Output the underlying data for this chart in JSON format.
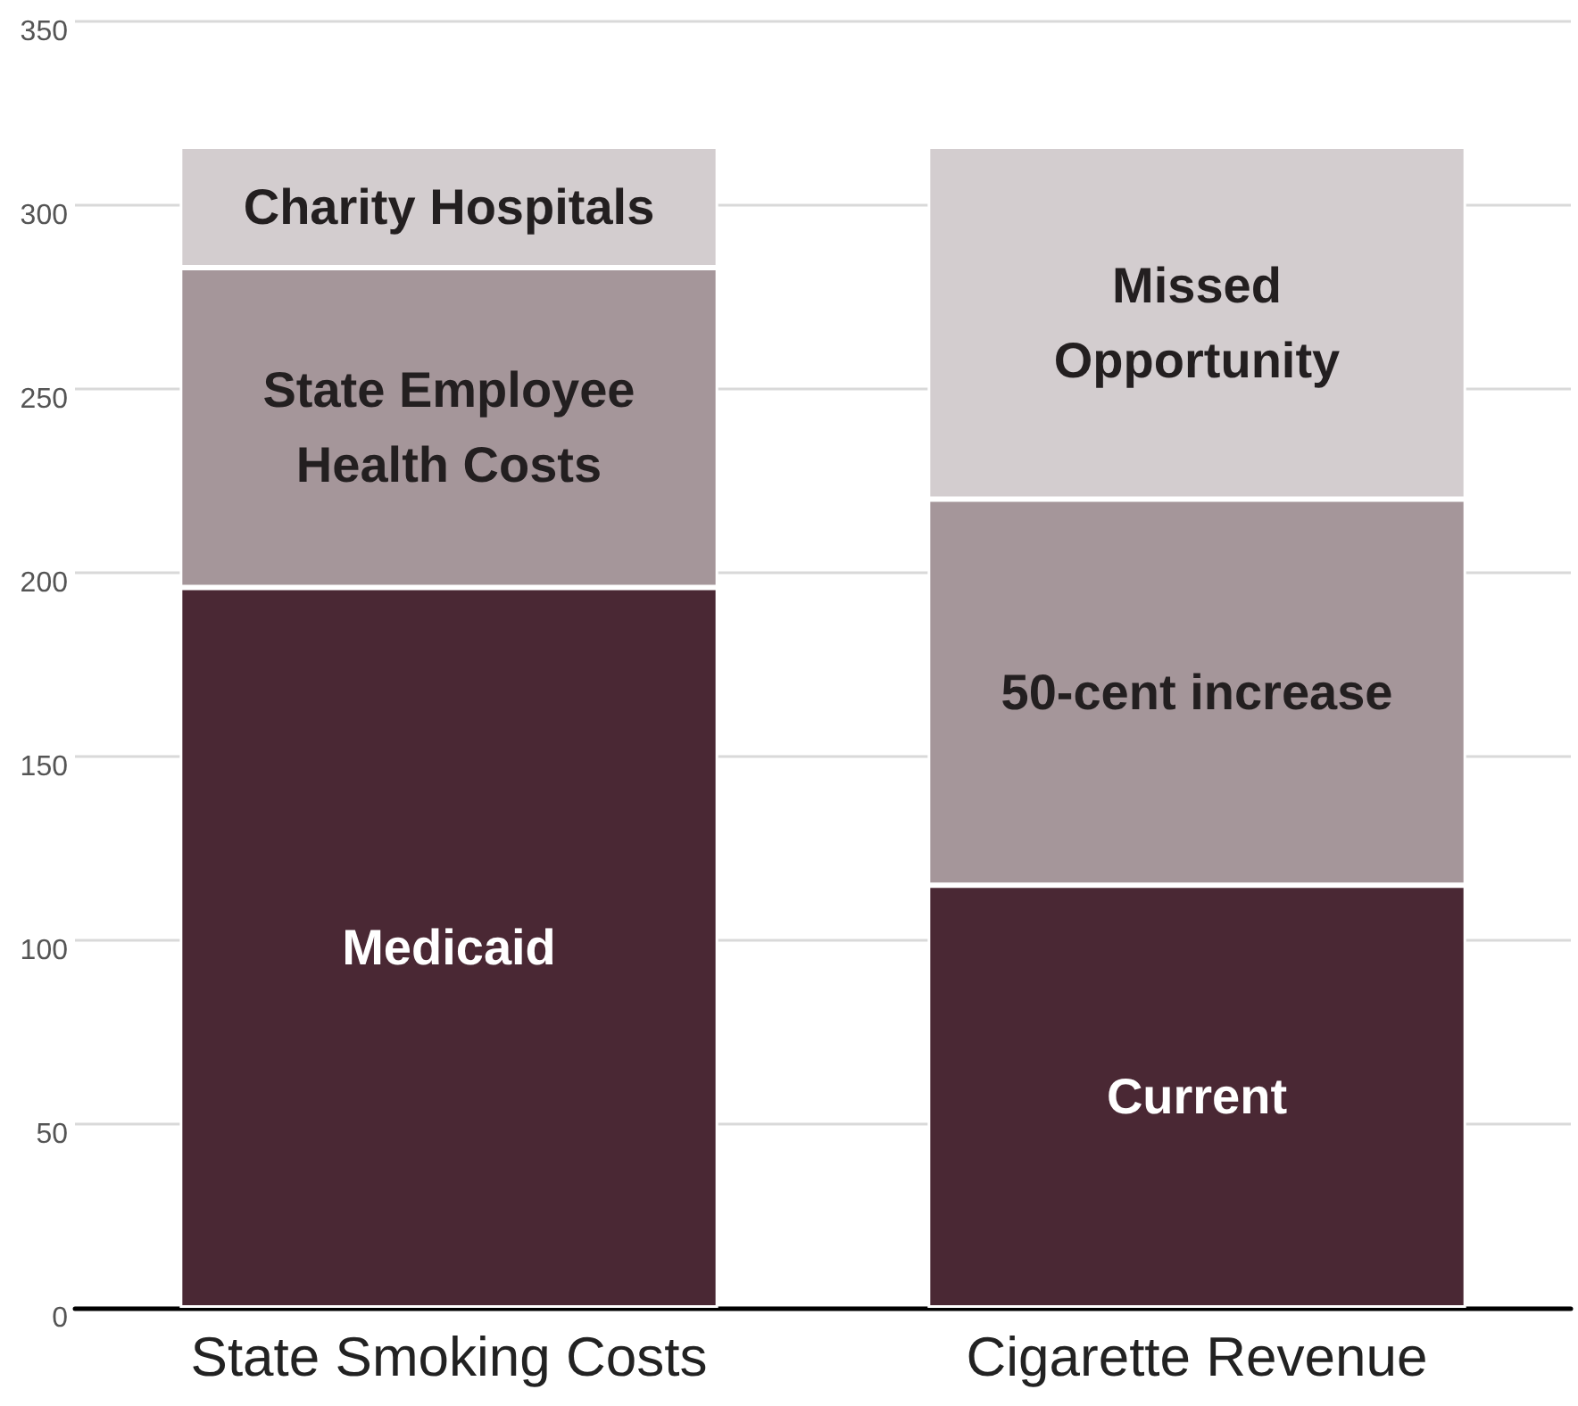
{
  "chart_data": {
    "type": "bar",
    "stacked": true,
    "categories": [
      "State Smoking Costs",
      "Cigarette Revenue"
    ],
    "series": [
      {
        "color": "#4a2834",
        "values": [
          196,
          115
        ]
      },
      {
        "color": "#a5969a",
        "values": [
          87,
          105
        ]
      },
      {
        "color": "#d3cdcf",
        "values": [
          33,
          96
        ]
      }
    ],
    "ylim": [
      0,
      350
    ],
    "yticks": [
      0,
      50,
      100,
      150,
      200,
      250,
      300,
      350
    ],
    "grid": "y",
    "annotations": [
      "Medicaid",
      "Current",
      "State Employee\nHealth Costs",
      "50-cent increase",
      "Charity Hospitals",
      "Missed\nOpportunity"
    ]
  }
}
